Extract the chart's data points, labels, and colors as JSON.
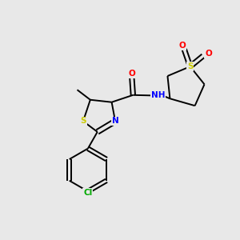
{
  "background_color": "#e8e8e8",
  "bond_color": "#000000",
  "atom_colors": {
    "S": "#cccc00",
    "N": "#0000ff",
    "O": "#ff0000",
    "Cl": "#00aa00",
    "C": "#000000",
    "H": "#777777"
  }
}
